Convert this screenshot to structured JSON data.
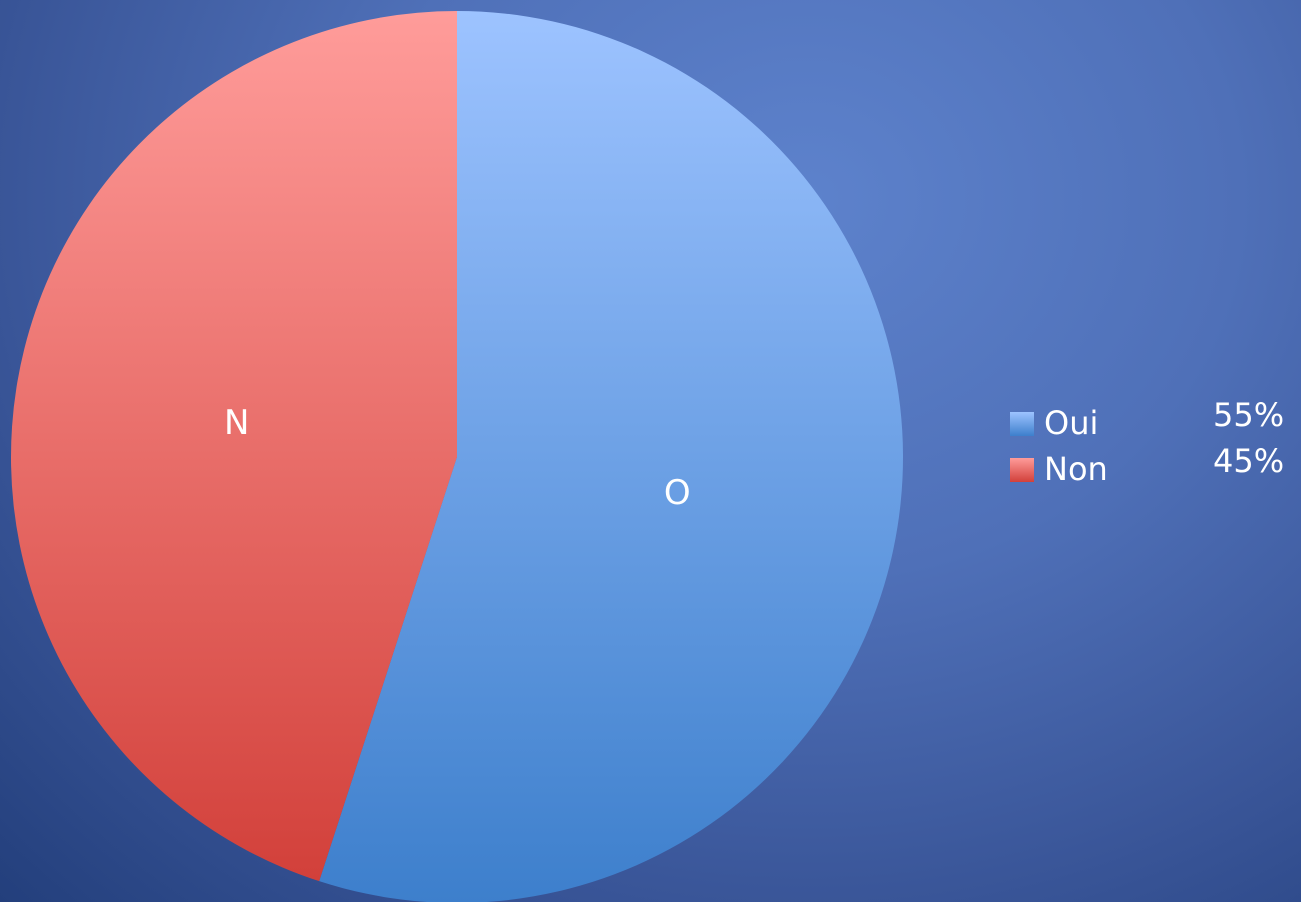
{
  "chart_data": {
    "type": "pie",
    "title": "",
    "slices": [
      {
        "name": "Oui",
        "value": 55,
        "percent_label": "55%",
        "slice_label": "O",
        "color": "#6b9be6"
      },
      {
        "name": "Non",
        "value": 45,
        "percent_label": "45%",
        "slice_label": "N",
        "color": "#e06a66"
      }
    ],
    "start": "top (12 o'clock)",
    "direction": "clockwise",
    "legend_position": "right"
  },
  "colors": {
    "background": "#4f70b8",
    "oui_top": "#9dc3ff",
    "oui_bottom": "#3d7fcc",
    "non_top": "#ff9c9a",
    "non_bottom": "#d2403a"
  },
  "legend": {
    "items": [
      {
        "label": "Oui",
        "percent": "55%"
      },
      {
        "label": "Non",
        "percent": "45%"
      }
    ]
  }
}
